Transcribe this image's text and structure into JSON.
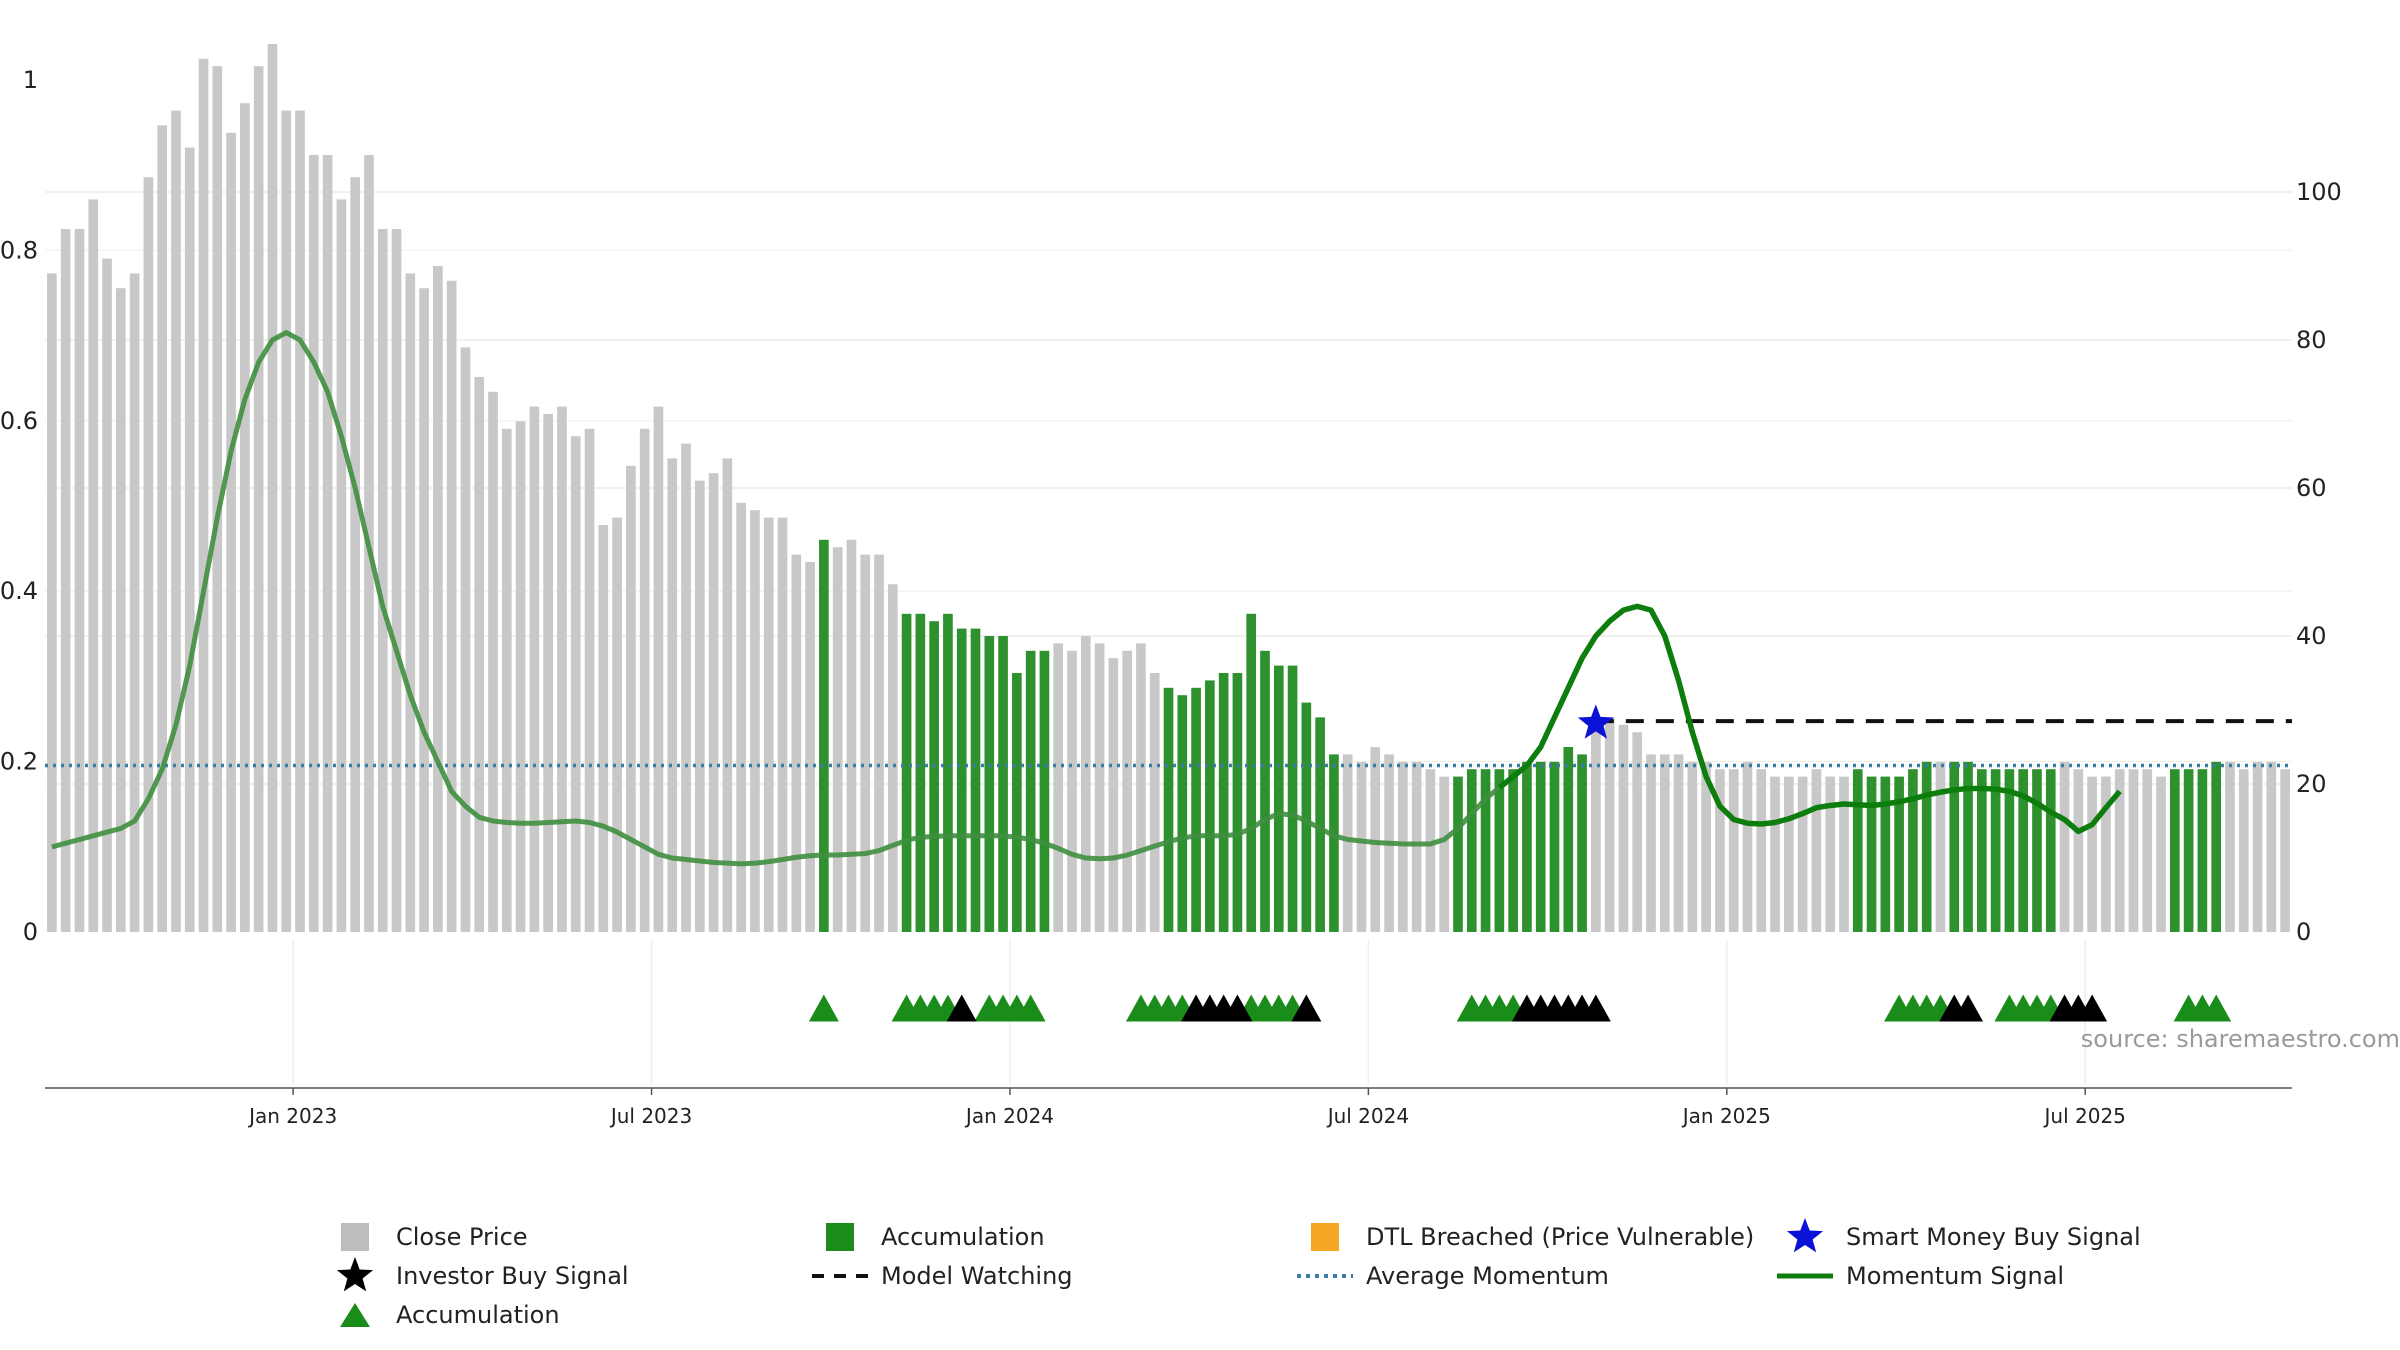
{
  "chart_data": {
    "type": "bar",
    "description_source": "source: sharemaestro.com",
    "y_left": {
      "ticks": [
        "0",
        "0.2",
        "0.4",
        "0.6",
        "0.8",
        "1"
      ],
      "lim": [
        0,
        1
      ]
    },
    "y_right": {
      "ticks": [
        "0",
        "20",
        "40",
        "60",
        "80",
        "100"
      ],
      "lim": [
        0,
        115
      ]
    },
    "x_ticks": [
      "Jan 2023",
      "Jul 2023",
      "Jan 2024",
      "Jul 2024",
      "Jan 2025",
      "Jul 2025"
    ],
    "x_tick_week_index": [
      18,
      44,
      70,
      96,
      122,
      148
    ],
    "bars": {
      "close_price": [
        89,
        95,
        95,
        99,
        91,
        87,
        89,
        102,
        109,
        111,
        106,
        118,
        117,
        108,
        112,
        117,
        120,
        111,
        111,
        105,
        105,
        99,
        102,
        105,
        95,
        95,
        89,
        87,
        90,
        88,
        79,
        75,
        73,
        68,
        69,
        71,
        70,
        71,
        67,
        68,
        55,
        56,
        63,
        68,
        71,
        64,
        66,
        61,
        62,
        64,
        58,
        57,
        56,
        56,
        51,
        50,
        53,
        52,
        53,
        51,
        51,
        47,
        43,
        43,
        42,
        43,
        41,
        41,
        40,
        40,
        35,
        38,
        38,
        39,
        38,
        40,
        39,
        37,
        38,
        39,
        35,
        33,
        32,
        33,
        34,
        35,
        35,
        43,
        38,
        36,
        36,
        31,
        29,
        24,
        24,
        23,
        25,
        24,
        23,
        23,
        22,
        21,
        21,
        22,
        22,
        22,
        22,
        23,
        23,
        23,
        25,
        24,
        28,
        29,
        28,
        27,
        24,
        24,
        24,
        23,
        23,
        22,
        22,
        23,
        22,
        21,
        21,
        21,
        22,
        21,
        21,
        22,
        21,
        21,
        21,
        22,
        23,
        23,
        23,
        23,
        22,
        22,
        22,
        22,
        22,
        22,
        23,
        22,
        21,
        21,
        22,
        22,
        22,
        21,
        22,
        22,
        22,
        23,
        23,
        22,
        23,
        23,
        22
      ],
      "accumulation_weeks": [
        56,
        62,
        63,
        64,
        65,
        66,
        67,
        68,
        69,
        70,
        71,
        72,
        81,
        82,
        83,
        84,
        85,
        86,
        87,
        88,
        89,
        90,
        91,
        92,
        93,
        102,
        103,
        104,
        105,
        106,
        107,
        108,
        109,
        110,
        111,
        131,
        132,
        133,
        134,
        135,
        136,
        138,
        139,
        140,
        141,
        142,
        143,
        144,
        145,
        154,
        155,
        156,
        157
      ]
    },
    "momentum_signal": [
      11.5,
      12,
      12.5,
      13,
      13.5,
      14,
      15,
      18,
      22,
      28,
      36,
      46,
      56,
      65,
      72,
      77,
      80,
      81,
      80,
      77,
      73,
      67,
      60,
      52,
      44,
      38,
      32,
      27,
      23,
      19,
      17,
      15.5,
      15,
      14.8,
      14.7,
      14.7,
      14.8,
      14.9,
      15,
      14.8,
      14.3,
      13.5,
      12.5,
      11.5,
      10.5,
      10,
      9.8,
      9.6,
      9.4,
      9.3,
      9.2,
      9.3,
      9.5,
      9.8,
      10.1,
      10.3,
      10.4,
      10.4,
      10.5,
      10.6,
      11,
      11.7,
      12.4,
      12.8,
      12.9,
      13,
      13,
      13,
      13,
      13,
      12.8,
      12.5,
      12,
      11.3,
      10.5,
      10,
      9.9,
      10,
      10.4,
      11,
      11.6,
      12.2,
      12.7,
      13,
      13,
      13,
      13.2,
      14,
      15.2,
      16,
      15.8,
      15,
      14,
      13,
      12.5,
      12.3,
      12.1,
      12,
      11.9,
      11.9,
      11.9,
      12.5,
      14,
      16,
      18,
      19.5,
      21,
      22.5,
      25,
      29,
      33,
      37,
      40,
      42,
      43.5,
      44,
      43.5,
      40,
      34,
      27,
      21,
      17,
      15.2,
      14.7,
      14.6,
      14.8,
      15.3,
      16,
      16.8,
      17.1,
      17.3,
      17.2,
      17.1,
      17.3,
      17.6,
      18,
      18.5,
      18.9,
      19.2,
      19.4,
      19.4,
      19.3,
      19,
      18.4,
      17.4,
      16.2,
      15.2,
      13.6,
      14.5,
      16.8,
      19
    ],
    "average_momentum": 22.5,
    "model_watching_level": 28.5,
    "model_watching_start_week": 112,
    "smart_money_buy_signal": {
      "week": 112,
      "value": 29
    },
    "triangles": {
      "accumulation": [
        56,
        62,
        63,
        64,
        65,
        68,
        69,
        70,
        71,
        79,
        80,
        81,
        82,
        87,
        88,
        89,
        90,
        103,
        104,
        105,
        106,
        134,
        135,
        136,
        137,
        142,
        143,
        144,
        145,
        155,
        156,
        157
      ],
      "investor_buy": [
        66,
        83,
        84,
        85,
        86,
        91,
        107,
        108,
        109,
        110,
        111,
        112,
        138,
        139,
        146,
        147,
        148
      ]
    },
    "colors": {
      "close_price": "#c8c8c8",
      "accumulation": "#2e912e",
      "momentum": "#0d7d0d",
      "momentum_faded": "#3f8f3f",
      "average_momentum": "#3b7ba6",
      "model_watching": "#111111",
      "smart_money": "#0a12d6",
      "triangle_acc": "#1a8c1a",
      "triangle_inv": "#000000",
      "dtl": "#f5a623"
    },
    "legend": [
      {
        "label": "Close Price",
        "marker": "square",
        "color": "#bdbdbd"
      },
      {
        "label": "Accumulation",
        "marker": "square",
        "color": "#1a8c1a"
      },
      {
        "label": "DTL Breached (Price Vulnerable)",
        "marker": "square",
        "color": "#f5a623"
      },
      {
        "label": "Smart Money Buy Signal",
        "marker": "star",
        "color": "#0a12d6"
      },
      {
        "label": "Investor Buy Signal",
        "marker": "star",
        "color": "#000000"
      },
      {
        "label": "Model Watching",
        "marker": "dash",
        "color": "#111111"
      },
      {
        "label": "Average Momentum",
        "marker": "dot",
        "color": "#3b7ba6"
      },
      {
        "label": "Momentum Signal",
        "marker": "line",
        "color": "#0d7d0d"
      },
      {
        "label": "Accumulation",
        "marker": "triangle",
        "color": "#1a8c1a"
      }
    ]
  }
}
